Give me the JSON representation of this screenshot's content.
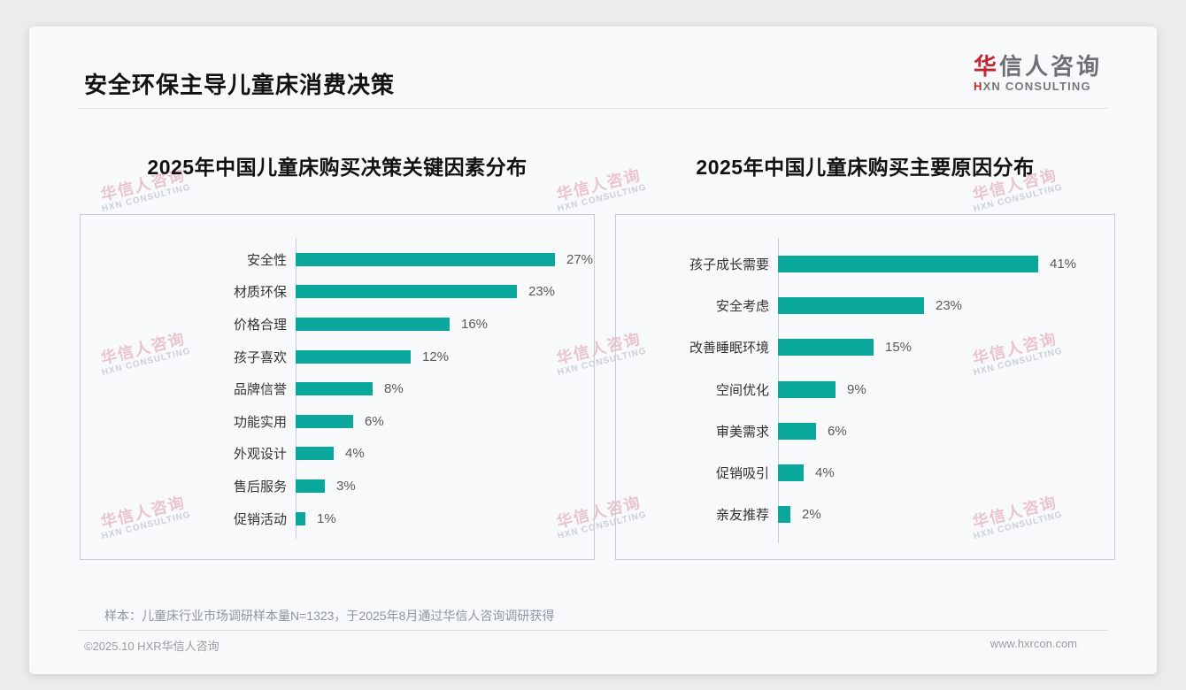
{
  "page": {
    "title": "安全环保主导儿童床消费决策",
    "logo": {
      "zh_accent": "华",
      "zh_rest": "信人咨询",
      "en_accent": "H",
      "en_rest": "XN CONSULTING"
    },
    "watermark": {
      "zh": "华信人咨询",
      "en": "HXN CONSULTING"
    },
    "footnote": "样本：儿童床行业市场调研样本量N=1323，于2025年8月通过华信人咨询调研获得",
    "copyright": "©2025.10 HXR华信人咨询",
    "website": "www.hxrcon.com",
    "accent_color": "#c2272d",
    "bar_color": "#09a79c"
  },
  "chart_data": [
    {
      "type": "bar",
      "orientation": "horizontal",
      "title": "2025年中国儿童床购买决策关键因素分布",
      "categories": [
        "安全性",
        "材质环保",
        "价格合理",
        "孩子喜欢",
        "品牌信誉",
        "功能实用",
        "外观设计",
        "售后服务",
        "促销活动"
      ],
      "values": [
        27,
        23,
        16,
        12,
        8,
        6,
        4,
        3,
        1
      ],
      "unit": "%",
      "value_labels": [
        "27%",
        "23%",
        "16%",
        "12%",
        "8%",
        "6%",
        "4%",
        "3%",
        "1%"
      ],
      "xlim": [
        0,
        30
      ],
      "grid": false,
      "legend": "none"
    },
    {
      "type": "bar",
      "orientation": "horizontal",
      "title": "2025年中国儿童床购买主要原因分布",
      "categories": [
        "孩子成长需要",
        "安全考虑",
        "改善睡眠环境",
        "空间优化",
        "审美需求",
        "促销吸引",
        "亲友推荐"
      ],
      "values": [
        41,
        23,
        15,
        9,
        6,
        4,
        2
      ],
      "unit": "%",
      "value_labels": [
        "41%",
        "23%",
        "15%",
        "9%",
        "6%",
        "4%",
        "2%"
      ],
      "xlim": [
        0,
        51
      ],
      "grid": false,
      "legend": "none"
    }
  ]
}
